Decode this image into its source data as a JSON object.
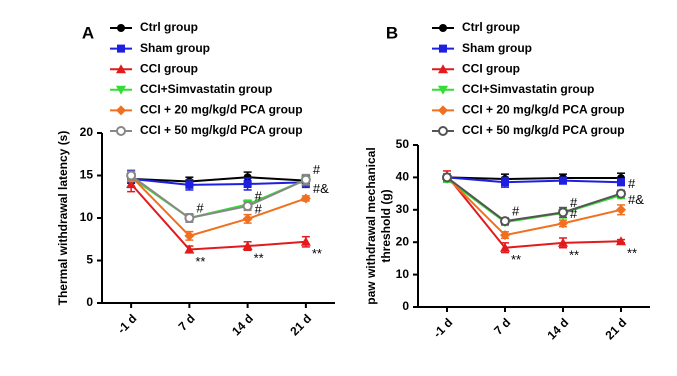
{
  "chart_data": [
    {
      "type": "line",
      "panel": "A",
      "ylabel": [
        "Thermal withdrawal latency (s)"
      ],
      "categories": [
        "-1 d",
        "7 d",
        "14 d",
        "21 d"
      ],
      "ylim": [
        0,
        20
      ],
      "yticks": [
        0,
        5,
        10,
        15,
        20
      ],
      "series": [
        {
          "name": "Ctrl group",
          "color": "#000000",
          "marker": "circle",
          "values": [
            14.6,
            14.3,
            14.8,
            14.4
          ],
          "errors": [
            0.5,
            0.5,
            0.6,
            0.6
          ],
          "point_labels": [
            null,
            null,
            null,
            null
          ]
        },
        {
          "name": "Sham group",
          "color": "#1f1fe0",
          "marker": "square",
          "values": [
            14.6,
            13.9,
            14.0,
            14.2
          ],
          "errors": [
            1.0,
            0.6,
            0.7,
            0.6
          ],
          "point_labels": [
            null,
            null,
            null,
            null
          ]
        },
        {
          "name": "CCI group",
          "color": "#e31a1c",
          "marker": "triangle",
          "values": [
            14.0,
            6.3,
            6.7,
            7.2
          ],
          "errors": [
            0.9,
            0.4,
            0.5,
            0.6
          ],
          "point_labels": [
            null,
            "**",
            "**",
            "**"
          ]
        },
        {
          "name": "CCI+Simvastatin group",
          "color": "#33dd33",
          "marker": "triangle-down",
          "values": [
            14.8,
            10.0,
            11.6,
            14.5
          ],
          "errors": [
            0.5,
            0.4,
            0.5,
            0.6
          ],
          "point_labels": [
            null,
            null,
            null,
            null
          ]
        },
        {
          "name": "CCI + 20 mg/kg/d PCA group",
          "color": "#f07020",
          "marker": "diamond",
          "values": [
            14.9,
            7.9,
            9.9,
            12.3
          ],
          "errors": [
            0.5,
            0.5,
            0.5,
            0.3
          ],
          "point_labels": [
            null,
            null,
            "#",
            "#&"
          ]
        },
        {
          "name": "CCI + 50 mg/kg/d  PCA group",
          "color": "#888888",
          "marker": "open-circle",
          "values": [
            15.0,
            10.0,
            11.4,
            14.5
          ],
          "errors": [
            0.5,
            0.5,
            0.5,
            0.6
          ],
          "point_labels": [
            null,
            "#",
            "#",
            "#"
          ]
        }
      ]
    },
    {
      "type": "line",
      "panel": "B",
      "ylabel": [
        "paw withdrawal mechanical",
        "threshold (g)"
      ],
      "categories": [
        "-1 d",
        "7 d",
        "14 d",
        "21 d"
      ],
      "ylim": [
        0,
        50
      ],
      "yticks": [
        0,
        10,
        20,
        30,
        40,
        50
      ],
      "series": [
        {
          "name": "Ctrl group",
          "color": "#000000",
          "marker": "circle",
          "values": [
            40,
            39.5,
            39.8,
            39.8
          ],
          "errors": [
            1,
            1.5,
            1.2,
            1.5
          ],
          "point_labels": [
            null,
            null,
            null,
            null
          ]
        },
        {
          "name": "Sham group",
          "color": "#1f1fe0",
          "marker": "square",
          "values": [
            40,
            38.5,
            39.0,
            38.5
          ],
          "errors": [
            1,
            1.5,
            1,
            1
          ],
          "point_labels": [
            null,
            null,
            null,
            null
          ]
        },
        {
          "name": "CCI group",
          "color": "#e31a1c",
          "marker": "triangle",
          "values": [
            40.5,
            18.3,
            19.8,
            20.3
          ],
          "errors": [
            1.5,
            1.5,
            1.5,
            0.5
          ],
          "point_labels": [
            null,
            "**",
            "**",
            "**"
          ]
        },
        {
          "name": "CCI+Simvastatin group",
          "color": "#33dd33",
          "marker": "triangle-down",
          "values": [
            39.5,
            26.2,
            29.0,
            34.5
          ],
          "errors": [
            1,
            1,
            1.5,
            1
          ],
          "point_labels": [
            null,
            null,
            null,
            null
          ]
        },
        {
          "name": "CCI + 20 mg/kg/d PCA group",
          "color": "#f07020",
          "marker": "diamond",
          "values": [
            40,
            22.2,
            25.8,
            30.0
          ],
          "errors": [
            1,
            1,
            1,
            1.5
          ],
          "point_labels": [
            null,
            null,
            "#",
            "#&"
          ]
        },
        {
          "name": "CCI + 50 mg/kg/d PCA group",
          "color": "#555555",
          "marker": "open-circle",
          "values": [
            40,
            26.5,
            29.2,
            35.0
          ],
          "errors": [
            1,
            1,
            1.5,
            1
          ],
          "point_labels": [
            null,
            "#",
            "#",
            "#"
          ]
        }
      ]
    }
  ]
}
